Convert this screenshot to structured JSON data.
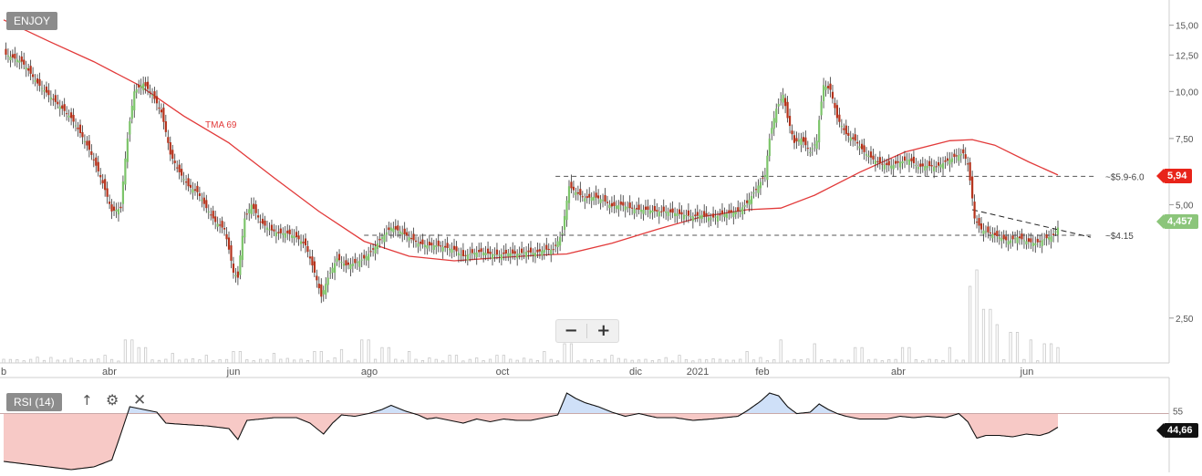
{
  "ticker": "ENJOY",
  "indicator": {
    "label": "RSI (14)",
    "level": 55,
    "last": "44,66",
    "arrow_icon": "arrow-up-icon",
    "settings_icon": "gear-icon",
    "close_icon": "close-icon"
  },
  "zoom": {
    "minus": "−",
    "plus": "+"
  },
  "ma_label": "TMA 69",
  "colors": {
    "up": "#7cc46a",
    "down": "#b5321b",
    "ma": "#e23a3a",
    "rsi_above": "#cfe0f8",
    "rsi_below": "#f7c9c6",
    "price_flag": "#8bc57a",
    "level_flag": "#e8241a"
  },
  "chart_data": {
    "type": "candlestick",
    "x_ticks": [
      "b",
      "abr",
      "jun",
      "ago",
      "oct",
      "dic",
      "2021",
      "feb",
      "abr",
      "jun"
    ],
    "y_ticks": [
      "2,50",
      "5,00",
      "7,50",
      "10,00",
      "12,50",
      "15,00"
    ],
    "y_tick_values": [
      2.5,
      5,
      7.5,
      10,
      12.5,
      15
    ],
    "y_scale": "log",
    "last_price": "4,457",
    "level_price": "5,94",
    "annotations": [
      {
        "label": "~$5.9-6.0",
        "value": 5.95
      },
      {
        "label": "~$4.15",
        "value": 4.15
      }
    ],
    "price_path": [
      [
        0,
        12.6
      ],
      [
        8,
        12.0
      ],
      [
        15,
        10.5
      ],
      [
        22,
        9.5
      ],
      [
        30,
        8.5
      ],
      [
        38,
        7.0
      ],
      [
        44,
        5.7
      ],
      [
        48,
        4.8
      ],
      [
        52,
        4.9
      ],
      [
        55,
        7.5
      ],
      [
        58,
        10.0
      ],
      [
        62,
        10.5
      ],
      [
        66,
        9.8
      ],
      [
        70,
        8.8
      ],
      [
        74,
        6.8
      ],
      [
        78,
        6.1
      ],
      [
        82,
        5.6
      ],
      [
        86,
        5.4
      ],
      [
        90,
        4.9
      ],
      [
        94,
        4.5
      ],
      [
        98,
        4.3
      ],
      [
        102,
        3.3
      ],
      [
        104,
        3.2
      ],
      [
        107,
        4.6
      ],
      [
        110,
        5.0
      ],
      [
        114,
        4.5
      ],
      [
        118,
        4.3
      ],
      [
        122,
        4.2
      ],
      [
        126,
        4.2
      ],
      [
        130,
        4.1
      ],
      [
        134,
        3.9
      ],
      [
        138,
        3.3
      ],
      [
        141,
        2.85
      ],
      [
        144,
        3.2
      ],
      [
        148,
        3.6
      ],
      [
        152,
        3.45
      ],
      [
        156,
        3.5
      ],
      [
        160,
        3.6
      ],
      [
        164,
        3.8
      ],
      [
        168,
        4.1
      ],
      [
        172,
        4.35
      ],
      [
        176,
        4.25
      ],
      [
        180,
        4.1
      ],
      [
        184,
        3.95
      ],
      [
        188,
        3.9
      ],
      [
        192,
        3.9
      ],
      [
        196,
        3.85
      ],
      [
        200,
        3.8
      ],
      [
        204,
        3.65
      ],
      [
        208,
        3.72
      ],
      [
        212,
        3.75
      ],
      [
        216,
        3.7
      ],
      [
        220,
        3.68
      ],
      [
        224,
        3.72
      ],
      [
        228,
        3.7
      ],
      [
        232,
        3.75
      ],
      [
        236,
        3.72
      ],
      [
        240,
        3.8
      ],
      [
        244,
        3.8
      ],
      [
        248,
        4.2
      ],
      [
        251,
        5.6
      ],
      [
        254,
        5.4
      ],
      [
        258,
        5.2
      ],
      [
        262,
        5.25
      ],
      [
        266,
        5.15
      ],
      [
        270,
        4.95
      ],
      [
        274,
        5.0
      ],
      [
        278,
        4.9
      ],
      [
        282,
        4.85
      ],
      [
        286,
        4.85
      ],
      [
        290,
        4.8
      ],
      [
        294,
        4.8
      ],
      [
        298,
        4.75
      ],
      [
        302,
        4.7
      ],
      [
        306,
        4.65
      ],
      [
        310,
        4.7
      ],
      [
        314,
        4.6
      ],
      [
        318,
        4.7
      ],
      [
        322,
        4.75
      ],
      [
        326,
        4.8
      ],
      [
        330,
        5.05
      ],
      [
        334,
        5.5
      ],
      [
        338,
        6.0
      ],
      [
        340,
        7.5
      ],
      [
        343,
        9.0
      ],
      [
        346,
        9.8
      ],
      [
        348,
        8.5
      ],
      [
        351,
        7.3
      ],
      [
        354,
        7.5
      ],
      [
        358,
        6.9
      ],
      [
        361,
        7.4
      ],
      [
        364,
        10.4
      ],
      [
        367,
        10.1
      ],
      [
        370,
        8.5
      ],
      [
        374,
        7.7
      ],
      [
        378,
        7.4
      ],
      [
        382,
        6.9
      ],
      [
        386,
        6.6
      ],
      [
        390,
        6.4
      ],
      [
        394,
        6.35
      ],
      [
        398,
        6.5
      ],
      [
        402,
        6.6
      ],
      [
        406,
        6.3
      ],
      [
        410,
        6.35
      ],
      [
        414,
        6.3
      ],
      [
        418,
        6.5
      ],
      [
        422,
        6.7
      ],
      [
        426,
        6.85
      ],
      [
        428,
        6.4
      ],
      [
        431,
        4.6
      ],
      [
        434,
        4.3
      ],
      [
        438,
        4.2
      ],
      [
        442,
        4.1
      ],
      [
        446,
        4.0
      ],
      [
        450,
        4.1
      ],
      [
        454,
        4.0
      ],
      [
        458,
        3.95
      ],
      [
        462,
        4.05
      ],
      [
        466,
        4.15
      ],
      [
        468,
        4.35
      ]
    ],
    "ma_label": "TMA 69",
    "ma_path": [
      [
        0,
        15.5
      ],
      [
        20,
        13.6
      ],
      [
        40,
        12.0
      ],
      [
        60,
        10.4
      ],
      [
        80,
        8.6
      ],
      [
        100,
        7.3
      ],
      [
        120,
        5.9
      ],
      [
        140,
        4.8
      ],
      [
        160,
        4.0
      ],
      [
        180,
        3.65
      ],
      [
        200,
        3.55
      ],
      [
        220,
        3.62
      ],
      [
        240,
        3.68
      ],
      [
        250,
        3.7
      ],
      [
        270,
        3.95
      ],
      [
        290,
        4.3
      ],
      [
        310,
        4.65
      ],
      [
        330,
        4.85
      ],
      [
        345,
        4.9
      ],
      [
        360,
        5.3
      ],
      [
        380,
        6.1
      ],
      [
        400,
        6.9
      ],
      [
        420,
        7.4
      ],
      [
        430,
        7.45
      ],
      [
        440,
        7.2
      ],
      [
        455,
        6.5
      ],
      [
        468,
        6.0
      ]
    ],
    "rsi_path": [
      [
        0,
        20
      ],
      [
        10,
        18
      ],
      [
        20,
        16
      ],
      [
        30,
        14
      ],
      [
        40,
        16
      ],
      [
        48,
        21
      ],
      [
        52,
        40
      ],
      [
        56,
        60
      ],
      [
        62,
        58
      ],
      [
        68,
        56
      ],
      [
        72,
        48
      ],
      [
        80,
        47
      ],
      [
        90,
        46
      ],
      [
        100,
        44
      ],
      [
        104,
        36
      ],
      [
        108,
        50
      ],
      [
        114,
        51
      ],
      [
        120,
        52
      ],
      [
        130,
        52
      ],
      [
        136,
        48
      ],
      [
        142,
        40
      ],
      [
        146,
        48
      ],
      [
        150,
        54
      ],
      [
        156,
        53
      ],
      [
        162,
        55
      ],
      [
        168,
        58
      ],
      [
        172,
        61
      ],
      [
        178,
        57
      ],
      [
        184,
        54
      ],
      [
        188,
        51
      ],
      [
        192,
        52
      ],
      [
        198,
        50
      ],
      [
        204,
        48
      ],
      [
        210,
        51
      ],
      [
        216,
        49
      ],
      [
        222,
        51
      ],
      [
        228,
        50
      ],
      [
        234,
        50
      ],
      [
        240,
        52
      ],
      [
        246,
        54
      ],
      [
        250,
        70
      ],
      [
        254,
        66
      ],
      [
        258,
        63
      ],
      [
        264,
        60
      ],
      [
        270,
        56
      ],
      [
        276,
        53
      ],
      [
        282,
        55
      ],
      [
        290,
        52
      ],
      [
        298,
        52
      ],
      [
        306,
        50
      ],
      [
        314,
        51
      ],
      [
        320,
        52
      ],
      [
        326,
        53
      ],
      [
        330,
        57
      ],
      [
        336,
        64
      ],
      [
        340,
        70
      ],
      [
        344,
        68
      ],
      [
        348,
        60
      ],
      [
        352,
        55
      ],
      [
        358,
        56
      ],
      [
        362,
        62
      ],
      [
        366,
        58
      ],
      [
        370,
        55
      ],
      [
        374,
        53
      ],
      [
        380,
        51
      ],
      [
        386,
        51
      ],
      [
        392,
        51
      ],
      [
        398,
        53
      ],
      [
        404,
        52
      ],
      [
        410,
        53
      ],
      [
        418,
        52
      ],
      [
        424,
        55
      ],
      [
        428,
        49
      ],
      [
        432,
        37
      ],
      [
        436,
        39
      ],
      [
        442,
        39
      ],
      [
        448,
        38
      ],
      [
        454,
        40
      ],
      [
        460,
        39
      ],
      [
        464,
        41
      ],
      [
        468,
        45
      ]
    ],
    "volume_bars": [
      [
        15,
        1.5
      ],
      [
        30,
        1.2
      ],
      [
        45,
        2
      ],
      [
        55,
        6
      ],
      [
        62,
        4
      ],
      [
        75,
        2.5
      ],
      [
        90,
        2
      ],
      [
        104,
        3
      ],
      [
        120,
        2.5
      ],
      [
        140,
        3
      ],
      [
        150,
        3.5
      ],
      [
        160,
        6
      ],
      [
        170,
        4
      ],
      [
        180,
        3
      ],
      [
        200,
        2
      ],
      [
        220,
        2
      ],
      [
        240,
        3
      ],
      [
        250,
        5
      ],
      [
        270,
        2
      ],
      [
        300,
        2
      ],
      [
        330,
        3
      ],
      [
        345,
        6
      ],
      [
        360,
        5
      ],
      [
        380,
        4
      ],
      [
        400,
        4
      ],
      [
        420,
        4
      ],
      [
        430,
        20
      ],
      [
        432,
        25
      ],
      [
        436,
        14
      ],
      [
        440,
        10
      ],
      [
        448,
        8
      ],
      [
        456,
        6
      ],
      [
        464,
        5
      ],
      [
        468,
        4
      ]
    ]
  }
}
